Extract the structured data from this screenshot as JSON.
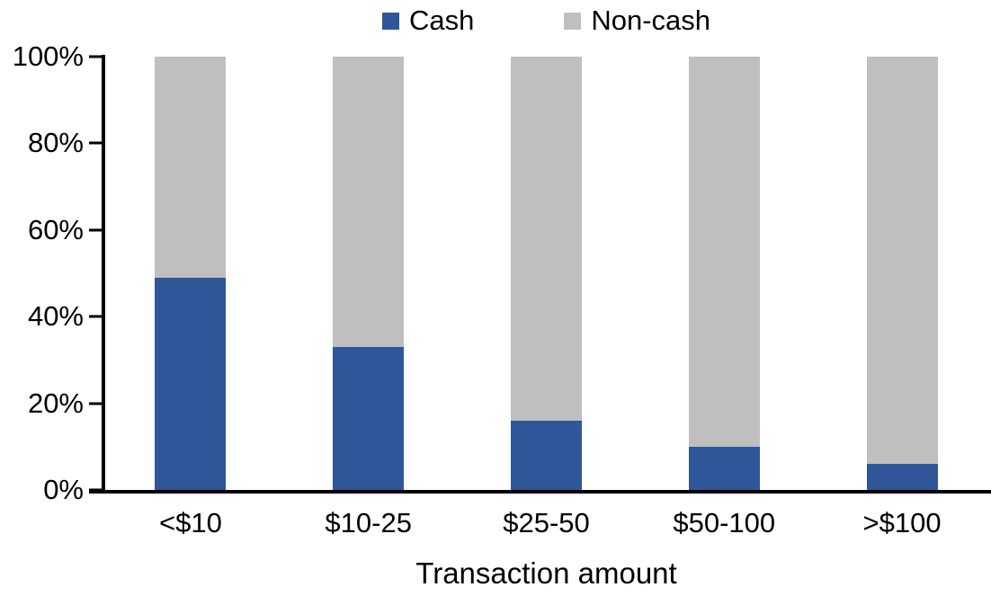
{
  "chart_data": {
    "type": "bar",
    "stacked": true,
    "percent_stacked": true,
    "categories": [
      "<$10",
      "$10-25",
      "$25-50",
      "$50-100",
      ">$100"
    ],
    "series": [
      {
        "name": "Cash",
        "color": "#30569A",
        "values": [
          49,
          33,
          16,
          10,
          6
        ]
      },
      {
        "name": "Non-cash",
        "color": "#BFBFBF",
        "values": [
          51,
          67,
          84,
          90,
          94
        ]
      }
    ],
    "title": "",
    "xlabel": "Transaction amount",
    "ylabel": "",
    "y_ticks": [
      "0%",
      "20%",
      "40%",
      "60%",
      "80%",
      "100%"
    ],
    "ylim": [
      0,
      100
    ],
    "grid": false,
    "legend_position": "top-center",
    "axis_color": "#000000",
    "text_color": "#000000"
  }
}
